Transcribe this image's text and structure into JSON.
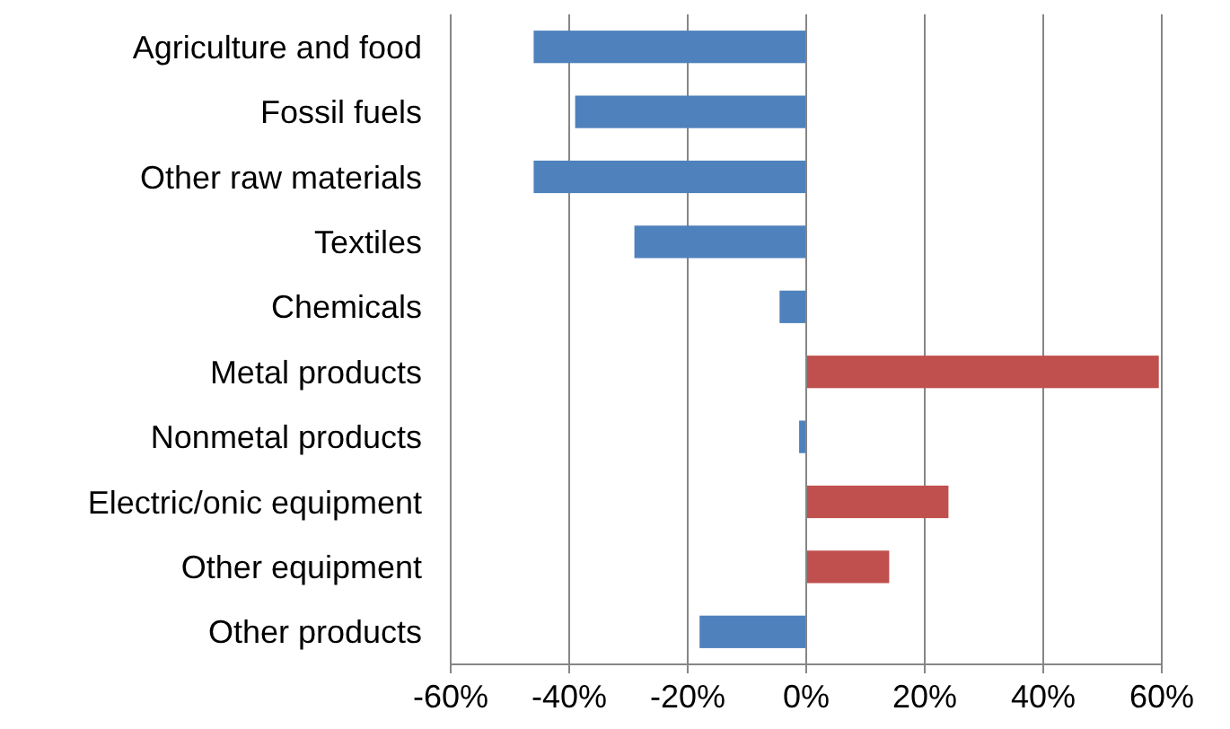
{
  "chart_data": {
    "type": "bar",
    "orientation": "horizontal",
    "categories": [
      "Agriculture and food",
      "Fossil fuels",
      "Other raw materials",
      "Textiles",
      "Chemicals",
      "Metal products",
      "Nonmetal products",
      "Electric/onic equipment",
      "Other equipment",
      "Other products"
    ],
    "values": [
      -46,
      -39,
      -46,
      -29,
      -4.5,
      59.5,
      -1.2,
      24,
      14,
      -18
    ],
    "colors": [
      "#4f81bd",
      "#4f81bd",
      "#4f81bd",
      "#4f81bd",
      "#4f81bd",
      "#c0504d",
      "#4f81bd",
      "#c0504d",
      "#c0504d",
      "#4f81bd"
    ],
    "xlim": [
      -60,
      60
    ],
    "xticks": [
      {
        "value": -60,
        "label": "-60%"
      },
      {
        "value": -40,
        "label": "-40%"
      },
      {
        "value": -20,
        "label": "-20%"
      },
      {
        "value": 0,
        "label": "0%"
      },
      {
        "value": 20,
        "label": "20%"
      },
      {
        "value": 40,
        "label": "40%"
      },
      {
        "value": 60,
        "label": "60%"
      }
    ],
    "grid": "x"
  }
}
